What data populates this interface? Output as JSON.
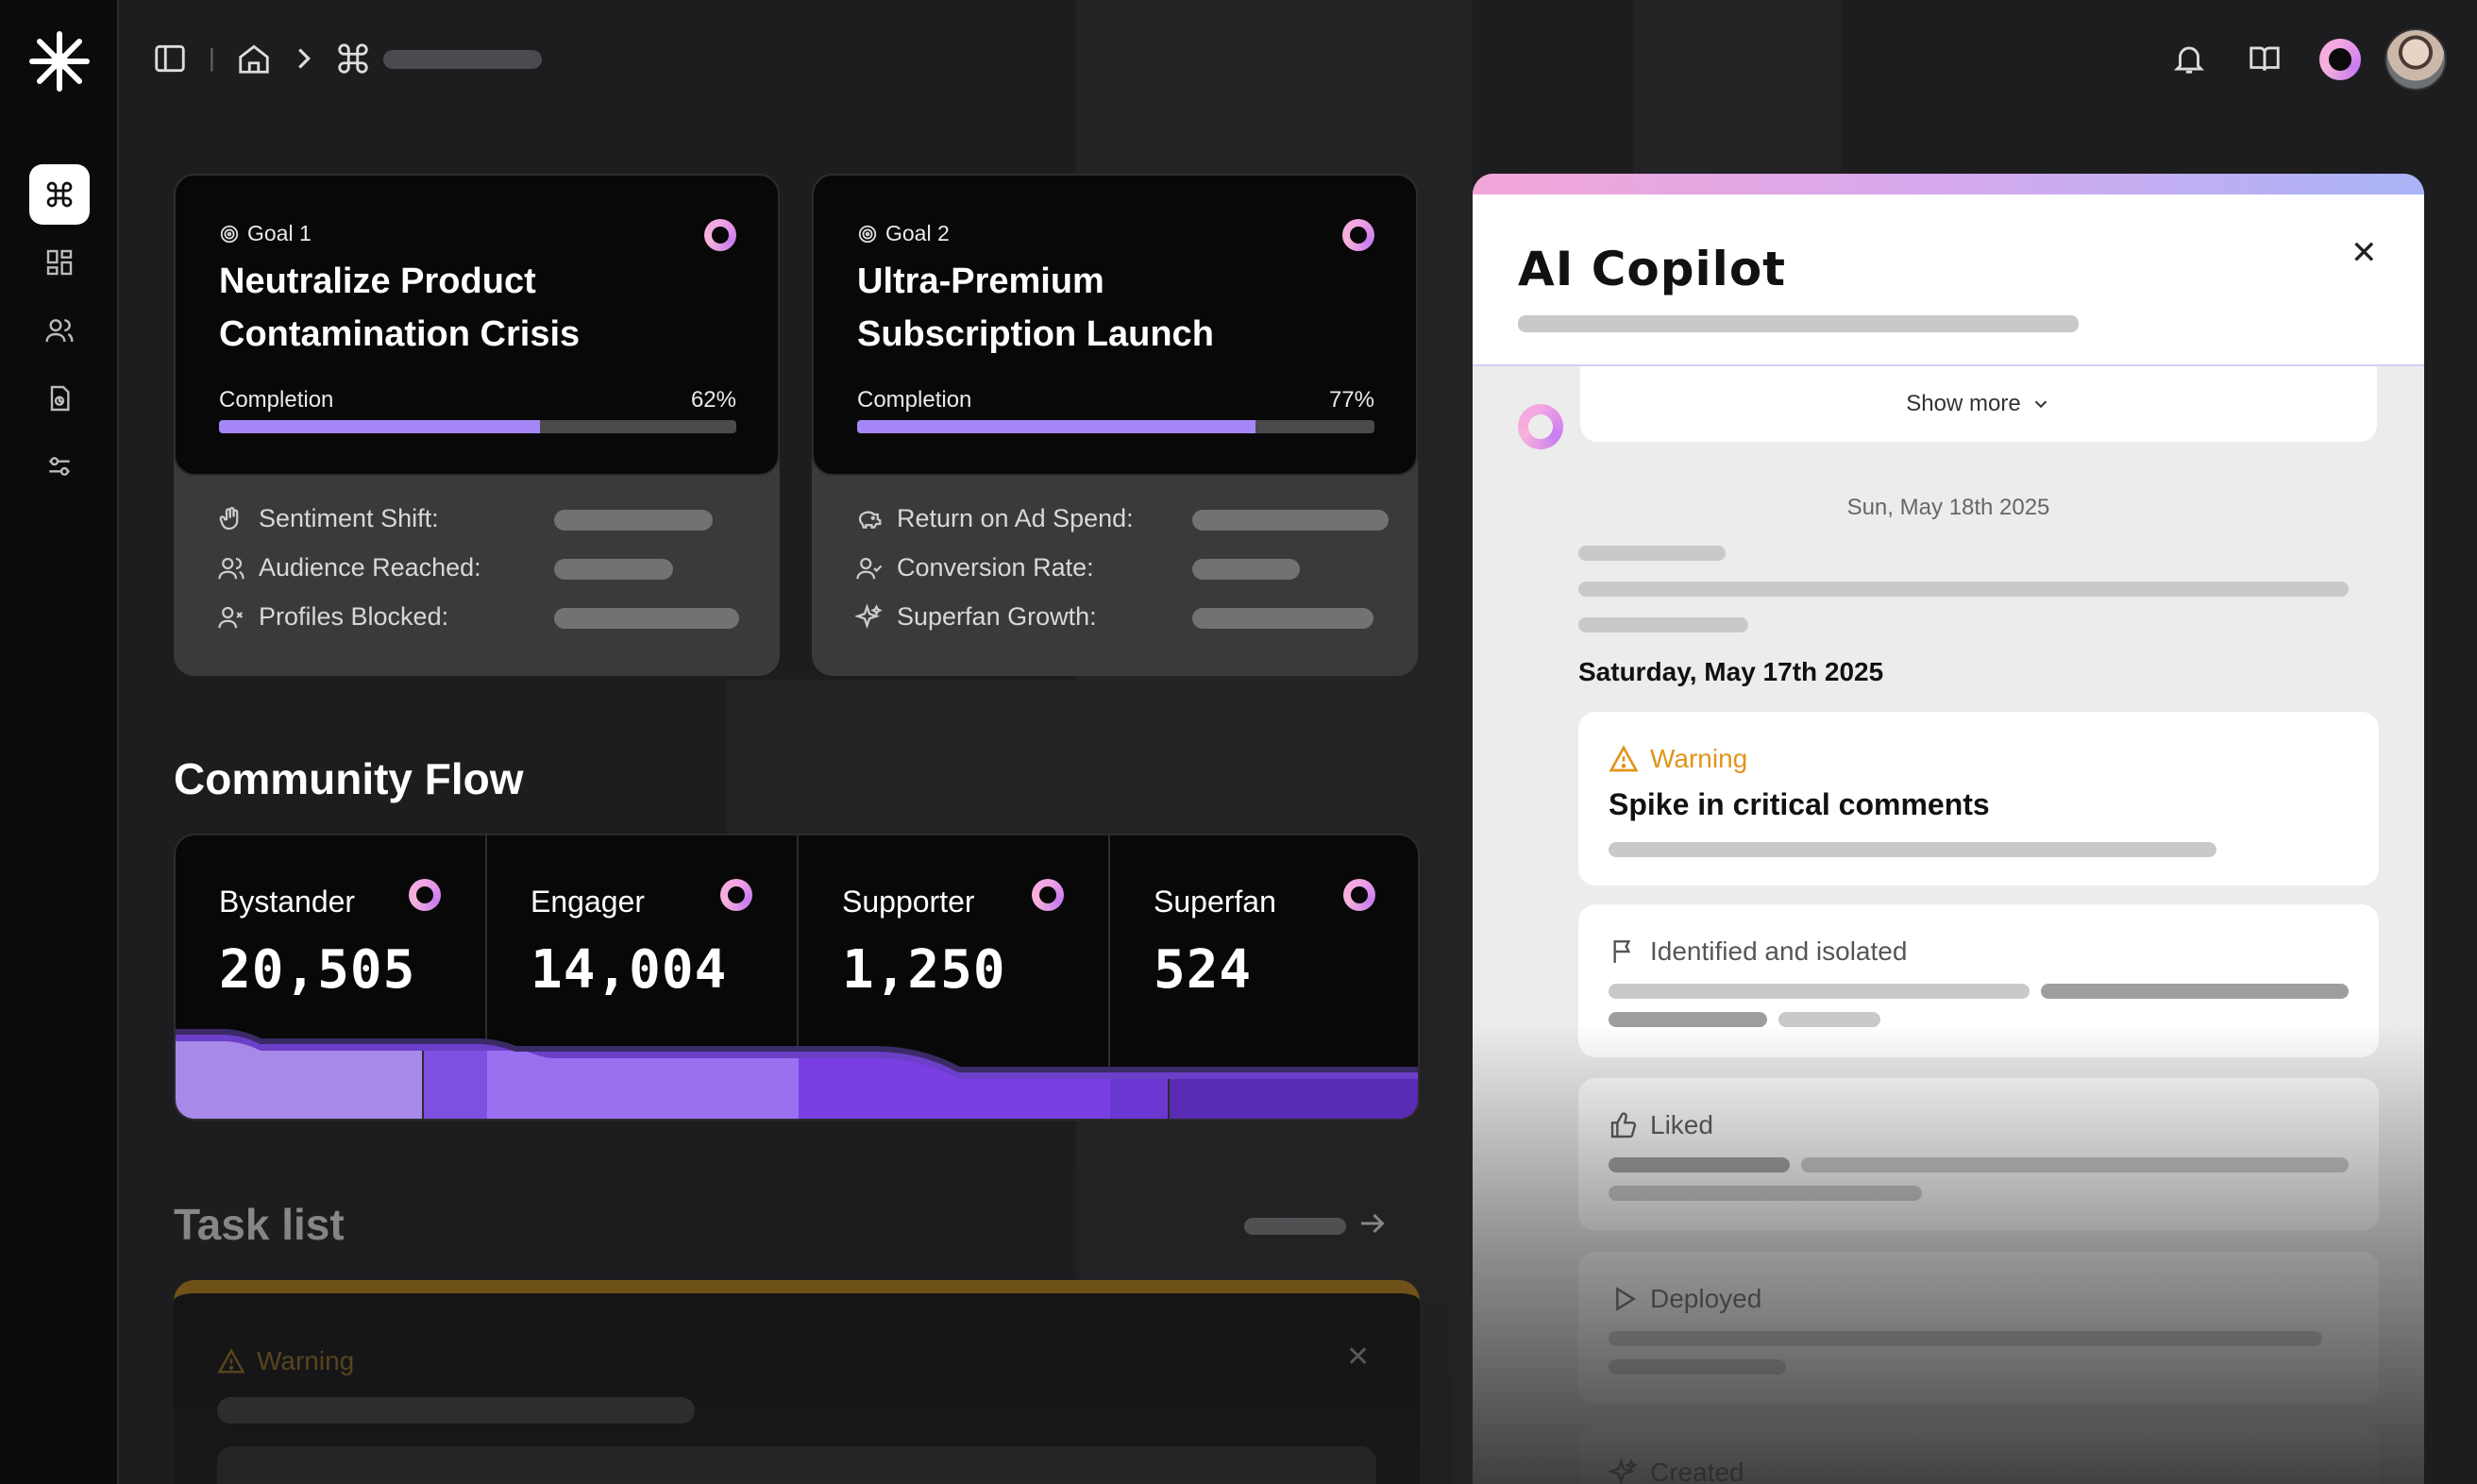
{
  "app": {
    "brand_icon": "asterisk-logo-icon"
  },
  "sidebar": {
    "items": [
      {
        "name": "command",
        "icon": "command-icon",
        "active": true
      },
      {
        "name": "dashboard",
        "icon": "grid-icon",
        "active": false
      },
      {
        "name": "audience",
        "icon": "users-icon",
        "active": false
      },
      {
        "name": "documents",
        "icon": "document-icon",
        "active": false
      },
      {
        "name": "settings",
        "icon": "sliders-icon",
        "active": false
      }
    ]
  },
  "topbar": {
    "separator": "|",
    "breadcrumb_arrow": "›"
  },
  "goals": [
    {
      "label": "Goal 1",
      "title": "Neutralize Product Contamination Crisis",
      "completion_label": "Completion",
      "completion_text": "62%",
      "completion": 0.62,
      "metrics": [
        {
          "label": "Sentiment Shift:",
          "icon": "hand-icon"
        },
        {
          "label": "Audience Reached:",
          "icon": "users-icon"
        },
        {
          "label": "Profiles Blocked:",
          "icon": "user-x-icon"
        }
      ]
    },
    {
      "label": "Goal 2",
      "title": "Ultra-Premium Subscription Launch",
      "completion_label": "Completion",
      "completion_text": "77%",
      "completion": 0.77,
      "metrics": [
        {
          "label": "Return on Ad Spend:",
          "icon": "piggy-bank-icon"
        },
        {
          "label": "Conversion Rate:",
          "icon": "user-check-icon"
        },
        {
          "label": "Superfan Growth:",
          "icon": "sparkles-icon"
        }
      ]
    }
  ],
  "community_flow": {
    "title": "Community Flow",
    "stages": [
      {
        "name": "Bystander",
        "value": "20,505"
      },
      {
        "name": "Engager",
        "value": "14,004"
      },
      {
        "name": "Supporter",
        "value": "1,250"
      },
      {
        "name": "Superfan",
        "value": "524"
      }
    ]
  },
  "task_list": {
    "title": "Task list",
    "card": {
      "status": "Warning"
    }
  },
  "copilot": {
    "title": "AI Copilot",
    "show_more": "Show more",
    "date_recent": "Sun, May 18th 2025",
    "date_section": "Saturday, May 17th 2025",
    "events": [
      {
        "status": "Warning",
        "title": "Spike in critical comments",
        "icon": "warning-triangle-icon"
      },
      {
        "status": "Identified and isolated",
        "icon": "flag-icon"
      },
      {
        "status": "Liked",
        "icon": "thumbs-up-icon"
      },
      {
        "status": "Deployed",
        "icon": "play-icon"
      },
      {
        "status": "Created",
        "icon": "sparkles-icon"
      }
    ],
    "colors": {
      "warning": "#e2941a",
      "accent": "#a586f7"
    }
  }
}
